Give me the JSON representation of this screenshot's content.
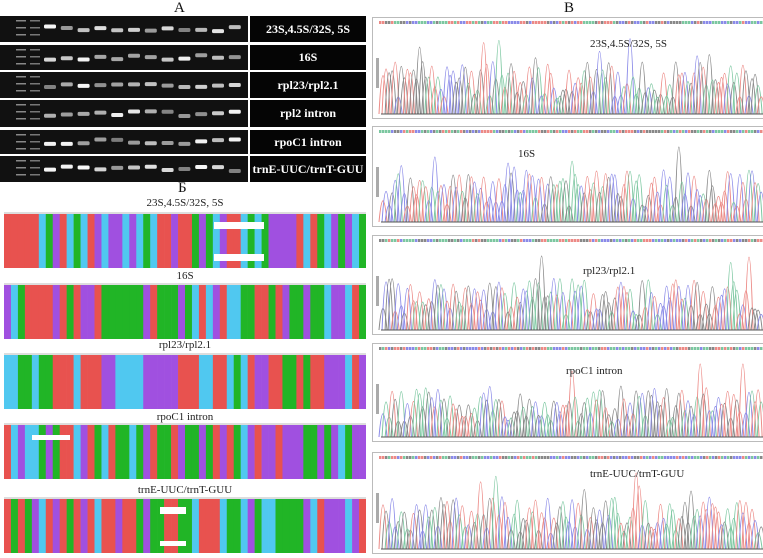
{
  "panels": {
    "a": "А",
    "b": "Б",
    "c": "В"
  },
  "gel": {
    "rows": [
      {
        "label": "23S,4.5S/32S, 5S"
      },
      {
        "label": "16S"
      },
      {
        "label": "rpl23/rpl2.1"
      },
      {
        "label": "rpl2 intron"
      },
      {
        "label": "rpoC1 intron"
      },
      {
        "label": "trnE-UUC/trnT-GUU"
      }
    ]
  },
  "alignments": [
    {
      "label": "23S,4.5S/32S, 5S"
    },
    {
      "label": "16S"
    },
    {
      "label": "rpl23/rpl2.1"
    },
    {
      "label": "rpoC1 intron"
    },
    {
      "label": "trnE-UUC/trnT-GUU"
    }
  ],
  "chromatograms": [
    {
      "label": "23S,4.5S/32S, 5S"
    },
    {
      "label": "16S"
    },
    {
      "label": "rpl23/rpl2.1"
    },
    {
      "label": "rpoC1 intron"
    },
    {
      "label": "trnE-UUC/trnT-GUU"
    }
  ],
  "colors": {
    "A": "#21b526",
    "C": "#50c8f0",
    "G": "#a050e0",
    "T": "#e8524f",
    "trace_A": "#7cc7a0",
    "trace_C": "#8a8ae8",
    "trace_G": "#888888",
    "trace_T": "#ec8a86"
  }
}
